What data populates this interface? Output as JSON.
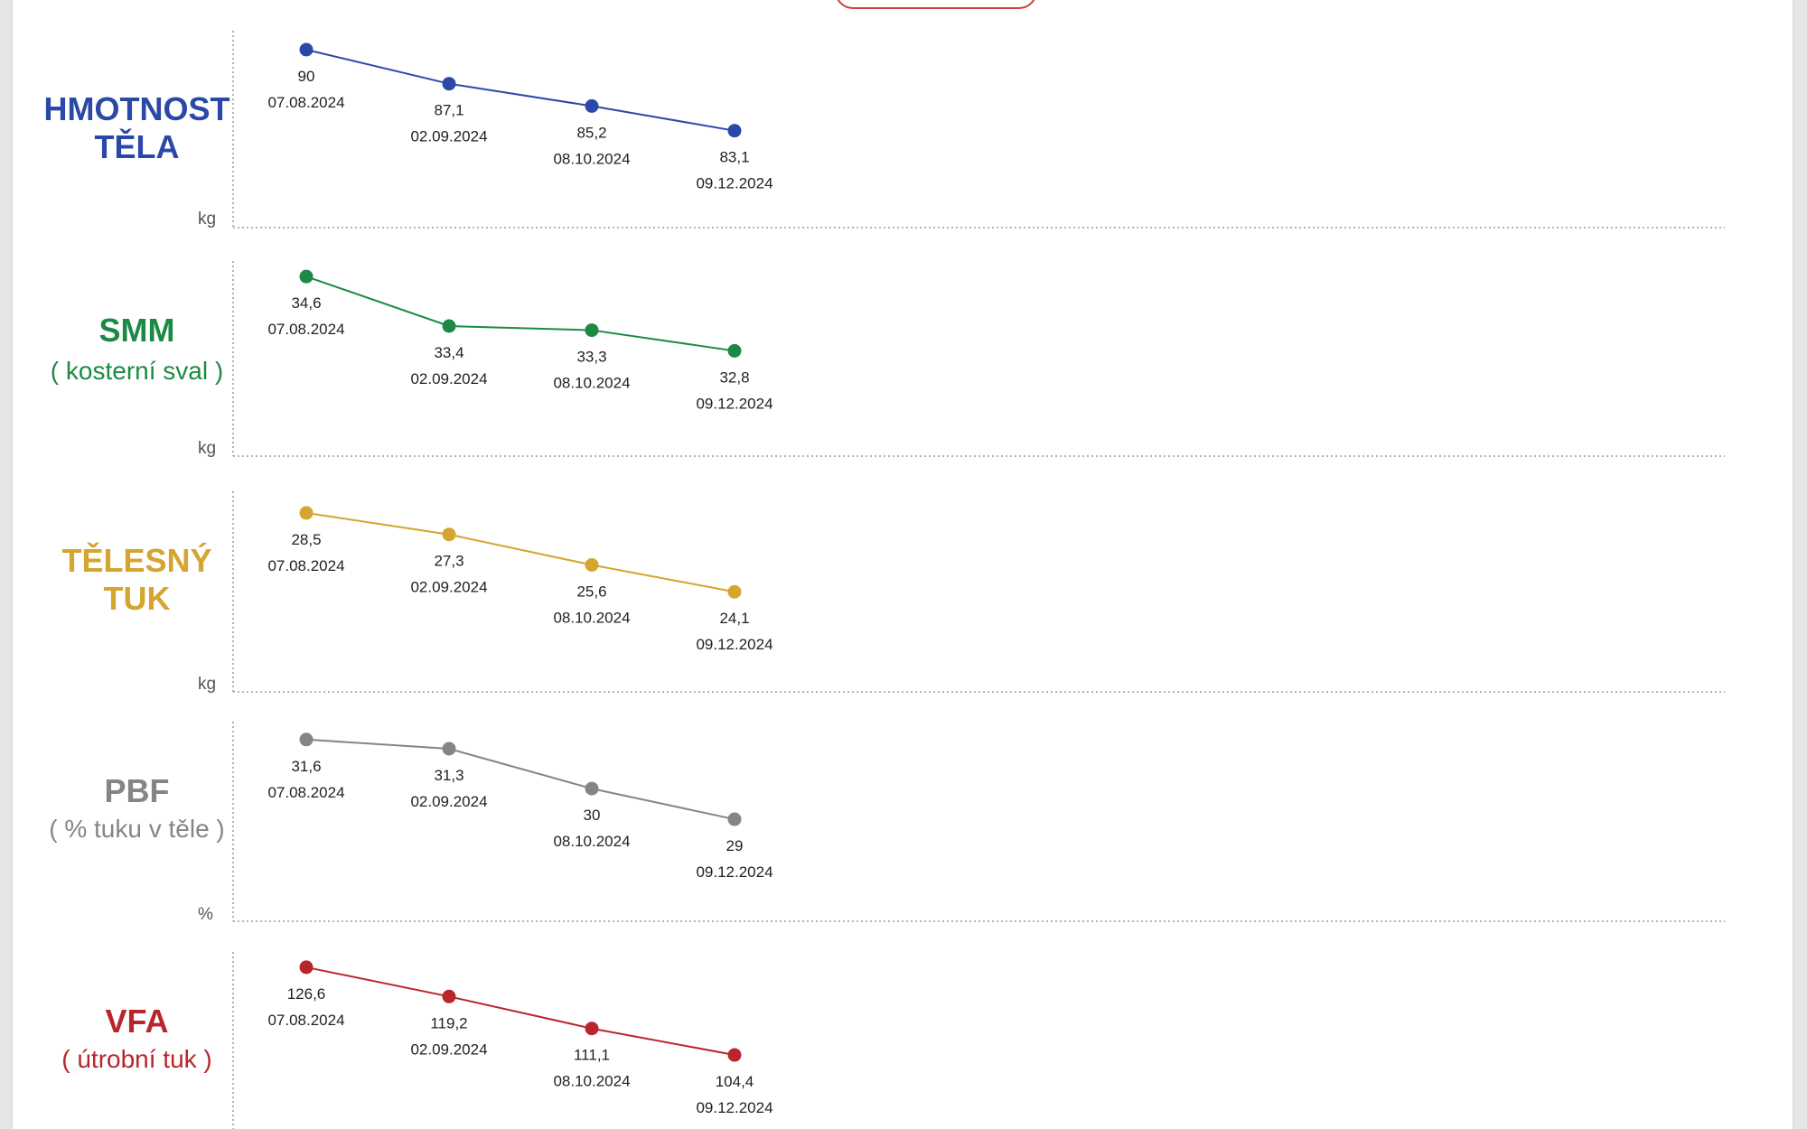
{
  "chart_data": [
    {
      "type": "line",
      "title": "HMOTNOST TĚLA",
      "subtitle": "",
      "unit": "kg",
      "color": "#2a48a8",
      "x": [
        "07.08.2024",
        "02.09.2024",
        "08.10.2024",
        "09.12.2024"
      ],
      "values": [
        90,
        87.1,
        85.2,
        83.1
      ],
      "value_labels": [
        "90",
        "87,1",
        "85,2",
        "83,1"
      ],
      "ylim": [
        81,
        91
      ],
      "grid": false
    },
    {
      "type": "line",
      "title": "SMM",
      "subtitle": "( kosterní sval )",
      "unit": "kg",
      "color": "#1c8a44",
      "x": [
        "07.08.2024",
        "02.09.2024",
        "08.10.2024",
        "09.12.2024"
      ],
      "values": [
        34.6,
        33.4,
        33.3,
        32.8
      ],
      "value_labels": [
        "34,6",
        "33,4",
        "33,3",
        "32,8"
      ],
      "ylim": [
        32.0,
        34.8
      ],
      "grid": false
    },
    {
      "type": "line",
      "title": "TĚLESNÝ TUK",
      "subtitle": "",
      "unit": "kg",
      "color": "#d4a52f",
      "x": [
        "07.08.2024",
        "02.09.2024",
        "08.10.2024",
        "09.12.2024"
      ],
      "values": [
        28.5,
        27.3,
        25.6,
        24.1
      ],
      "value_labels": [
        "28,5",
        "27,3",
        "25,6",
        "24,1"
      ],
      "ylim": [
        22.5,
        29.0
      ],
      "grid": false
    },
    {
      "type": "line",
      "title": "PBF",
      "subtitle": "( % tuku v těle )",
      "unit": "%",
      "color": "#858585",
      "x": [
        "07.08.2024",
        "02.09.2024",
        "08.10.2024",
        "09.12.2024"
      ],
      "values": [
        31.6,
        31.3,
        30,
        29
      ],
      "value_labels": [
        "31,6",
        "31,3",
        "30",
        "29"
      ],
      "ylim": [
        28.0,
        31.8
      ],
      "grid": false
    },
    {
      "type": "line",
      "title": "VFA",
      "subtitle": "( útrobní tuk )",
      "unit": "",
      "color": "#b8262c",
      "x": [
        "07.08.2024",
        "02.09.2024",
        "08.10.2024",
        "09.12.2024"
      ],
      "values": [
        126.6,
        119.2,
        111.1,
        104.4
      ],
      "value_labels": [
        "126,6",
        "119,2",
        "111,1",
        "104,4"
      ],
      "ylim": [
        98,
        127.5
      ],
      "grid": false
    }
  ]
}
